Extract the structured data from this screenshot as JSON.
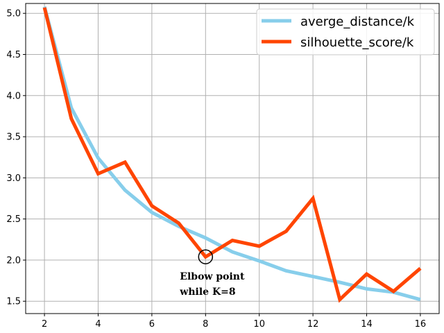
{
  "chart_data": {
    "type": "line",
    "title": "",
    "xlabel": "",
    "ylabel": "",
    "x": [
      2,
      3,
      4,
      5,
      6,
      7,
      8,
      9,
      10,
      11,
      12,
      13,
      14,
      15,
      16
    ],
    "xlim": [
      1.3,
      16.7
    ],
    "ylim": [
      1.35,
      5.12
    ],
    "xticks": [
      2,
      4,
      6,
      8,
      10,
      12,
      14,
      16
    ],
    "yticks": [
      1.5,
      2.0,
      2.5,
      3.0,
      3.5,
      4.0,
      4.5,
      5.0
    ],
    "xtick_labels": [
      "2",
      "4",
      "6",
      "8",
      "10",
      "12",
      "14",
      "16"
    ],
    "ytick_labels": [
      "1.5",
      "2.0",
      "2.5",
      "3.0",
      "3.5",
      "4.0",
      "4.5",
      "5.0"
    ],
    "grid": true,
    "legend_position": "top-right",
    "series": [
      {
        "name": "averge_distance/k",
        "color": "#87ceeb",
        "values": [
          5.08,
          3.85,
          3.24,
          2.85,
          2.58,
          2.41,
          2.27,
          2.1,
          1.99,
          1.87,
          1.8,
          1.73,
          1.65,
          1.61,
          1.52
        ]
      },
      {
        "name": "silhouette_score/k",
        "color": "#ff4500",
        "values": [
          5.07,
          3.72,
          3.05,
          3.19,
          2.66,
          2.45,
          2.04,
          2.24,
          2.17,
          2.35,
          2.75,
          1.52,
          1.83,
          1.62,
          1.9
        ]
      }
    ],
    "annotations": [
      {
        "text_line1": "Elbow point",
        "text_line2": "while K=8",
        "x": 8,
        "y": 2.04
      }
    ]
  }
}
